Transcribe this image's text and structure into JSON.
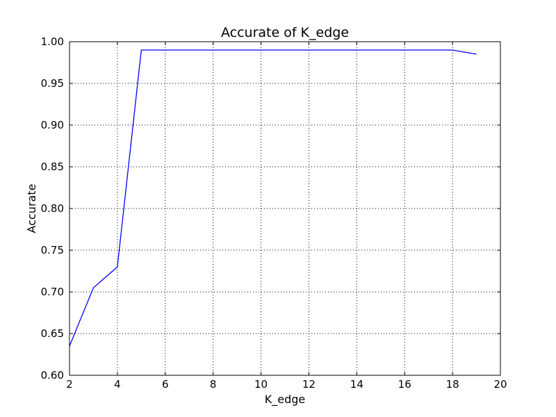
{
  "chart_data": {
    "type": "line",
    "title": "Accurate of K_edge",
    "xlabel": "K_edge",
    "ylabel": "Accurate",
    "xlim": [
      2,
      20
    ],
    "ylim": [
      0.6,
      1.0
    ],
    "xticks": [
      2,
      4,
      6,
      8,
      10,
      12,
      14,
      16,
      18,
      20
    ],
    "yticks": [
      0.6,
      0.65,
      0.7,
      0.75,
      0.8,
      0.85,
      0.9,
      0.95,
      1.0
    ],
    "xtick_labels": [
      "2",
      "4",
      "6",
      "8",
      "10",
      "12",
      "14",
      "16",
      "18",
      "20"
    ],
    "ytick_labels": [
      "0.60",
      "0.65",
      "0.70",
      "0.75",
      "0.80",
      "0.85",
      "0.90",
      "0.95",
      "1.00"
    ],
    "grid": true,
    "series": [
      {
        "color": "#0000ff",
        "x": [
          2,
          3,
          4,
          5,
          6,
          7,
          8,
          9,
          10,
          11,
          12,
          13,
          14,
          15,
          16,
          17,
          18,
          19
        ],
        "y": [
          0.635,
          0.705,
          0.73,
          0.99,
          0.99,
          0.99,
          0.99,
          0.99,
          0.99,
          0.99,
          0.99,
          0.99,
          0.99,
          0.99,
          0.99,
          0.99,
          0.99,
          0.985
        ]
      }
    ]
  }
}
